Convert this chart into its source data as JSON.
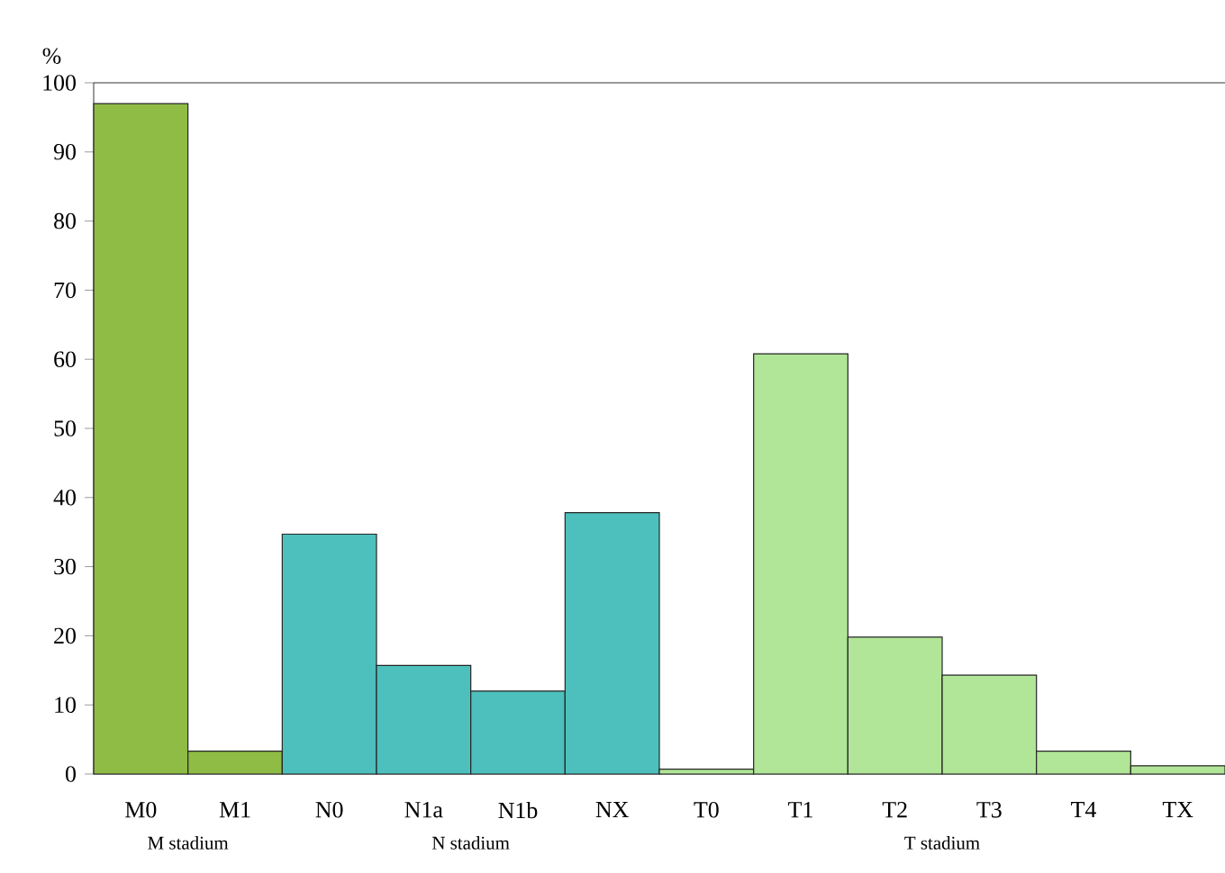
{
  "chart_data": {
    "type": "bar",
    "ylabel": "%",
    "categories": [
      "M0",
      "M1",
      "N0",
      "N1a",
      "N1b",
      "NX",
      "T0",
      "T1",
      "T2",
      "T3",
      "T4",
      "TX"
    ],
    "values": [
      97,
      3.3,
      34.7,
      15.7,
      12,
      37.8,
      0.7,
      60.8,
      19.8,
      14.3,
      3.3,
      1.2
    ],
    "colors": [
      "#8fbc45",
      "#8fbc45",
      "#4dc0bd",
      "#4dc0bd",
      "#4dc0bd",
      "#4dc0bd",
      "#b1e597",
      "#b1e597",
      "#b1e597",
      "#b1e597",
      "#b1e597",
      "#b1e597"
    ],
    "ylim": [
      0,
      100
    ],
    "yticks": [
      0,
      10,
      20,
      30,
      40,
      50,
      60,
      70,
      80,
      90,
      100
    ],
    "grid": false,
    "annotations": [
      "M stadium",
      "N stadium",
      "T stadium"
    ]
  }
}
